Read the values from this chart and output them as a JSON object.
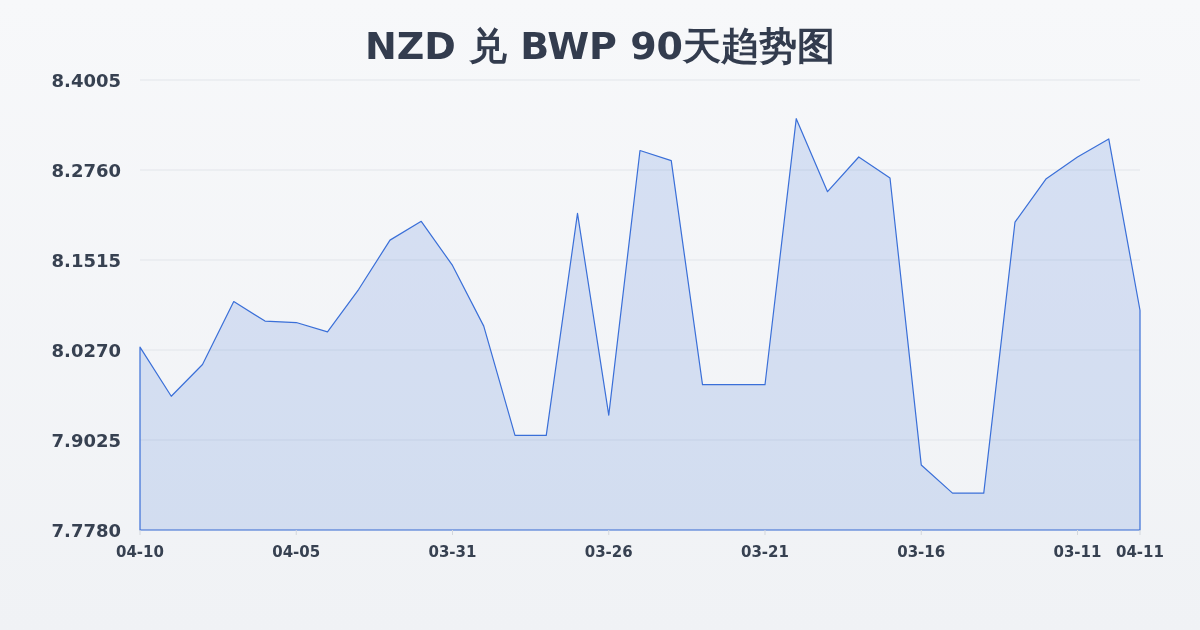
{
  "chart_data": {
    "type": "area",
    "title": "NZD 兑 BWP 90天趋势图",
    "categories": [
      "04-10",
      null,
      null,
      null,
      null,
      "04-05",
      null,
      null,
      null,
      null,
      "03-31",
      null,
      null,
      null,
      null,
      "03-26",
      null,
      null,
      null,
      null,
      "03-21",
      null,
      null,
      null,
      null,
      "03-16",
      null,
      null,
      null,
      null,
      "03-11",
      null,
      "04-11"
    ],
    "series": [
      {
        "color": "#3a6fd8",
        "values": [
          8.031,
          7.963,
          8.007,
          8.094,
          8.067,
          8.065,
          8.052,
          8.111,
          8.179,
          8.205,
          8.144,
          8.06,
          7.909,
          7.909,
          8.216,
          7.937,
          8.303,
          8.289,
          7.979,
          7.979,
          7.979,
          8.347,
          8.246,
          8.294,
          8.265,
          7.868,
          7.829,
          7.829,
          8.204,
          8.264,
          8.294,
          8.319,
          8.082
        ]
      }
    ],
    "ylim": [
      7.778,
      8.4005
    ],
    "yticks": [
      {
        "value": 7.778,
        "label": "7.7780"
      },
      7.9025,
      {
        "value": 8.027,
        "label": "8.0270"
      },
      8.1515,
      {
        "value": 8.276,
        "label": "8.2760"
      },
      8.4005
    ],
    "grid": "y"
  }
}
